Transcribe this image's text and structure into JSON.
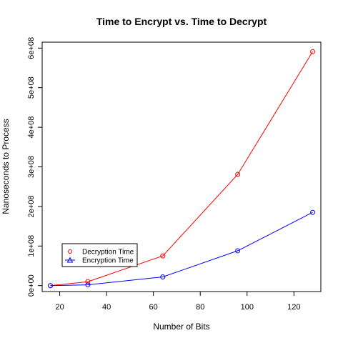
{
  "chart_data": {
    "type": "line",
    "title": "Time to Encrypt vs. Time to Decrypt",
    "xlabel": "Number of Bits",
    "ylabel": "Nanoseconds to Process",
    "xlim": [
      12.5,
      131.5
    ],
    "ylim": [
      -15000000,
      615000000
    ],
    "x_ticks": [
      20,
      40,
      60,
      80,
      100,
      120
    ],
    "x_tick_labels": [
      "20",
      "40",
      "60",
      "80",
      "100",
      "120"
    ],
    "y_ticks": [
      0,
      100000000,
      200000000,
      300000000,
      400000000,
      500000000,
      600000000
    ],
    "y_tick_labels": [
      "0e+00",
      "1e+08",
      "2e+08",
      "3e+08",
      "4e+08",
      "5e+08",
      "6e+08"
    ],
    "legend_position": "bottom-left",
    "grid": false,
    "series": [
      {
        "name": "Decryption Time",
        "color": "#ff0000",
        "marker": "circle",
        "x": [
          16,
          32,
          64,
          96,
          128
        ],
        "y": [
          0,
          10000000,
          75000000,
          281000000,
          591000000
        ]
      },
      {
        "name": "Encryption Time",
        "color": "#0000ff",
        "marker": "circle",
        "legend_marker": "triangle",
        "x": [
          16,
          32,
          64,
          96,
          128
        ],
        "y": [
          0,
          2000000,
          22000000,
          88000000,
          185000000
        ]
      }
    ]
  }
}
